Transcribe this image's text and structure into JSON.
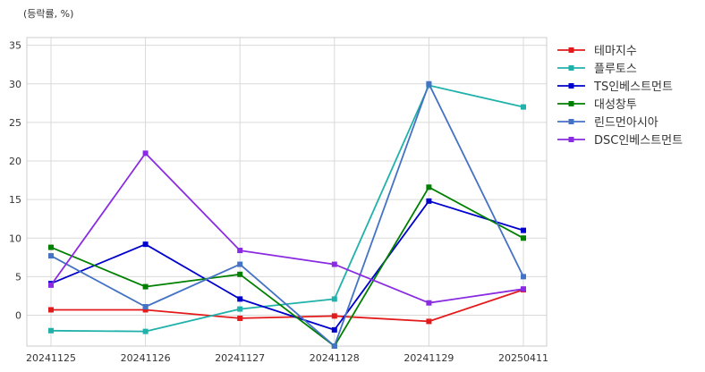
{
  "chart_data": {
    "type": "line",
    "unit_label": "(등락률, %)",
    "categories": [
      "20241125",
      "20241126",
      "20241127",
      "20241128",
      "20241129",
      "20250411"
    ],
    "ylim": [
      -4,
      36
    ],
    "yticks": [
      0,
      5,
      10,
      15,
      20,
      25,
      30,
      35
    ],
    "grid": true,
    "legend_position": "right",
    "series": [
      {
        "name": "테마지수",
        "color": "#e31a1c",
        "values": [
          0.7,
          0.7,
          -0.4,
          -0.1,
          -0.8,
          3.3
        ]
      },
      {
        "name": "플루토스",
        "color": "#20b2aa",
        "values": [
          -2.0,
          -2.1,
          0.8,
          2.1,
          29.8,
          27.0
        ]
      },
      {
        "name": "TS인베스트먼트",
        "color": "#0000cd",
        "values": [
          4.1,
          9.2,
          2.1,
          -1.9,
          14.8,
          11.0
        ]
      },
      {
        "name": "대성창투",
        "color": "#008000",
        "values": [
          8.8,
          3.7,
          5.3,
          -4.0,
          16.6,
          10.0
        ]
      },
      {
        "name": "린드먼아시아",
        "color": "#4472c4",
        "values": [
          7.7,
          1.1,
          6.6,
          -4.0,
          30.0,
          5.0
        ]
      },
      {
        "name": "DSC인베스트먼트",
        "color": "#8a2be2",
        "values": [
          3.9,
          21.0,
          8.4,
          6.6,
          1.6,
          3.4
        ]
      }
    ]
  }
}
